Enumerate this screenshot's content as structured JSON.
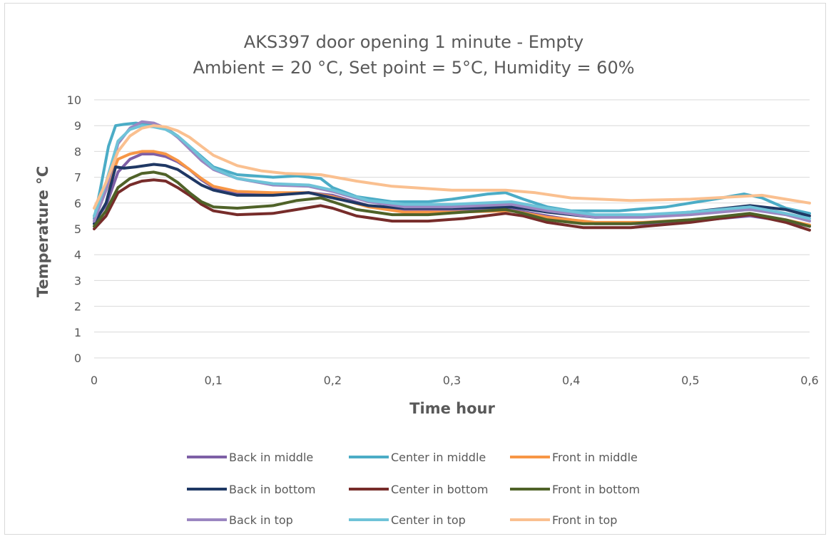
{
  "chart_data": {
    "type": "line",
    "title": "AKS397 door opening 1 minute - Empty",
    "subtitle": "Ambient = 20 °C, Set point = 5°C, Humidity = 60%",
    "xlabel": "Time hour",
    "ylabel": "Temperature °C",
    "xlim": [
      0,
      0.6
    ],
    "ylim": [
      0,
      10
    ],
    "x_ticks": [
      "0",
      "0,1",
      "0,2",
      "0,3",
      "0,4",
      "0,5",
      "0,6"
    ],
    "y_ticks": [
      "0",
      "1",
      "2",
      "3",
      "4",
      "5",
      "6",
      "7",
      "8",
      "9",
      "10"
    ],
    "grid": "horizontal",
    "legend_position": "bottom",
    "series": [
      {
        "name": "Back in middle",
        "color": "#7E5FA6",
        "points": [
          [
            0,
            5.3
          ],
          [
            0.01,
            5.9
          ],
          [
            0.02,
            7.2
          ],
          [
            0.03,
            7.7
          ],
          [
            0.04,
            7.9
          ],
          [
            0.05,
            7.9
          ],
          [
            0.06,
            7.8
          ],
          [
            0.07,
            7.6
          ],
          [
            0.08,
            7.3
          ],
          [
            0.09,
            6.9
          ],
          [
            0.1,
            6.6
          ],
          [
            0.12,
            6.4
          ],
          [
            0.15,
            6.35
          ],
          [
            0.18,
            6.4
          ],
          [
            0.2,
            6.3
          ],
          [
            0.23,
            5.9
          ],
          [
            0.26,
            5.7
          ],
          [
            0.3,
            5.7
          ],
          [
            0.35,
            5.75
          ],
          [
            0.38,
            5.5
          ],
          [
            0.42,
            5.2
          ],
          [
            0.46,
            5.2
          ],
          [
            0.5,
            5.3
          ],
          [
            0.55,
            5.5
          ],
          [
            0.58,
            5.3
          ],
          [
            0.6,
            5.1
          ]
        ]
      },
      {
        "name": "Center in middle",
        "color": "#4BACC6",
        "points": [
          [
            0,
            5.4
          ],
          [
            0.005,
            6.5
          ],
          [
            0.012,
            8.2
          ],
          [
            0.018,
            9.0
          ],
          [
            0.025,
            9.05
          ],
          [
            0.035,
            9.1
          ],
          [
            0.05,
            9.0
          ],
          [
            0.06,
            8.9
          ],
          [
            0.07,
            8.6
          ],
          [
            0.08,
            8.2
          ],
          [
            0.09,
            7.8
          ],
          [
            0.1,
            7.4
          ],
          [
            0.12,
            7.1
          ],
          [
            0.15,
            7.0
          ],
          [
            0.17,
            7.05
          ],
          [
            0.19,
            6.95
          ],
          [
            0.2,
            6.6
          ],
          [
            0.22,
            6.25
          ],
          [
            0.25,
            6.05
          ],
          [
            0.28,
            6.05
          ],
          [
            0.3,
            6.15
          ],
          [
            0.33,
            6.35
          ],
          [
            0.345,
            6.4
          ],
          [
            0.36,
            6.15
          ],
          [
            0.38,
            5.85
          ],
          [
            0.4,
            5.7
          ],
          [
            0.44,
            5.7
          ],
          [
            0.48,
            5.85
          ],
          [
            0.52,
            6.15
          ],
          [
            0.545,
            6.35
          ],
          [
            0.56,
            6.2
          ],
          [
            0.58,
            5.8
          ],
          [
            0.6,
            5.6
          ]
        ]
      },
      {
        "name": "Front in middle",
        "color": "#F79646",
        "points": [
          [
            0,
            5.5
          ],
          [
            0.01,
            6.5
          ],
          [
            0.02,
            7.7
          ],
          [
            0.03,
            7.9
          ],
          [
            0.04,
            8.0
          ],
          [
            0.05,
            8.0
          ],
          [
            0.06,
            7.9
          ],
          [
            0.07,
            7.65
          ],
          [
            0.08,
            7.3
          ],
          [
            0.09,
            6.95
          ],
          [
            0.1,
            6.65
          ],
          [
            0.12,
            6.45
          ],
          [
            0.15,
            6.4
          ],
          [
            0.18,
            6.4
          ],
          [
            0.2,
            6.25
          ],
          [
            0.23,
            5.85
          ],
          [
            0.26,
            5.65
          ],
          [
            0.3,
            5.65
          ],
          [
            0.35,
            5.7
          ],
          [
            0.38,
            5.45
          ],
          [
            0.42,
            5.25
          ],
          [
            0.46,
            5.25
          ],
          [
            0.5,
            5.35
          ],
          [
            0.55,
            5.55
          ],
          [
            0.58,
            5.35
          ],
          [
            0.6,
            5.15
          ]
        ]
      },
      {
        "name": "Back in bottom",
        "color": "#1F3864",
        "points": [
          [
            0,
            5.2
          ],
          [
            0.01,
            6.0
          ],
          [
            0.018,
            7.4
          ],
          [
            0.025,
            7.35
          ],
          [
            0.035,
            7.4
          ],
          [
            0.05,
            7.5
          ],
          [
            0.06,
            7.45
          ],
          [
            0.07,
            7.3
          ],
          [
            0.08,
            7.0
          ],
          [
            0.09,
            6.7
          ],
          [
            0.1,
            6.5
          ],
          [
            0.12,
            6.3
          ],
          [
            0.15,
            6.3
          ],
          [
            0.18,
            6.4
          ],
          [
            0.2,
            6.2
          ],
          [
            0.23,
            5.9
          ],
          [
            0.26,
            5.8
          ],
          [
            0.3,
            5.8
          ],
          [
            0.35,
            5.85
          ],
          [
            0.38,
            5.65
          ],
          [
            0.42,
            5.45
          ],
          [
            0.46,
            5.5
          ],
          [
            0.5,
            5.65
          ],
          [
            0.55,
            5.9
          ],
          [
            0.58,
            5.75
          ],
          [
            0.6,
            5.5
          ]
        ]
      },
      {
        "name": "Center in bottom",
        "color": "#772C2A",
        "points": [
          [
            0,
            5.0
          ],
          [
            0.01,
            5.5
          ],
          [
            0.02,
            6.4
          ],
          [
            0.03,
            6.7
          ],
          [
            0.04,
            6.85
          ],
          [
            0.05,
            6.9
          ],
          [
            0.06,
            6.85
          ],
          [
            0.07,
            6.6
          ],
          [
            0.08,
            6.3
          ],
          [
            0.09,
            5.95
          ],
          [
            0.1,
            5.7
          ],
          [
            0.12,
            5.55
          ],
          [
            0.15,
            5.6
          ],
          [
            0.17,
            5.75
          ],
          [
            0.19,
            5.9
          ],
          [
            0.2,
            5.8
          ],
          [
            0.22,
            5.5
          ],
          [
            0.25,
            5.3
          ],
          [
            0.28,
            5.3
          ],
          [
            0.31,
            5.4
          ],
          [
            0.345,
            5.6
          ],
          [
            0.36,
            5.5
          ],
          [
            0.38,
            5.25
          ],
          [
            0.41,
            5.05
          ],
          [
            0.45,
            5.05
          ],
          [
            0.5,
            5.25
          ],
          [
            0.55,
            5.55
          ],
          [
            0.58,
            5.25
          ],
          [
            0.6,
            4.95
          ]
        ]
      },
      {
        "name": "Front in bottom",
        "color": "#4F6228",
        "points": [
          [
            0,
            5.1
          ],
          [
            0.01,
            5.7
          ],
          [
            0.02,
            6.6
          ],
          [
            0.03,
            6.95
          ],
          [
            0.04,
            7.15
          ],
          [
            0.05,
            7.2
          ],
          [
            0.06,
            7.1
          ],
          [
            0.07,
            6.8
          ],
          [
            0.08,
            6.4
          ],
          [
            0.09,
            6.05
          ],
          [
            0.1,
            5.85
          ],
          [
            0.12,
            5.8
          ],
          [
            0.15,
            5.9
          ],
          [
            0.17,
            6.1
          ],
          [
            0.19,
            6.2
          ],
          [
            0.2,
            6.05
          ],
          [
            0.22,
            5.75
          ],
          [
            0.25,
            5.55
          ],
          [
            0.28,
            5.55
          ],
          [
            0.31,
            5.65
          ],
          [
            0.345,
            5.75
          ],
          [
            0.36,
            5.6
          ],
          [
            0.38,
            5.35
          ],
          [
            0.41,
            5.2
          ],
          [
            0.45,
            5.2
          ],
          [
            0.5,
            5.35
          ],
          [
            0.55,
            5.6
          ],
          [
            0.58,
            5.35
          ],
          [
            0.6,
            5.1
          ]
        ]
      },
      {
        "name": "Back in top",
        "color": "#9B86C1",
        "points": [
          [
            0,
            5.3
          ],
          [
            0.01,
            6.5
          ],
          [
            0.02,
            8.3
          ],
          [
            0.03,
            8.9
          ],
          [
            0.04,
            9.15
          ],
          [
            0.05,
            9.1
          ],
          [
            0.06,
            8.9
          ],
          [
            0.07,
            8.55
          ],
          [
            0.08,
            8.1
          ],
          [
            0.09,
            7.65
          ],
          [
            0.1,
            7.3
          ],
          [
            0.12,
            6.95
          ],
          [
            0.15,
            6.7
          ],
          [
            0.18,
            6.65
          ],
          [
            0.2,
            6.45
          ],
          [
            0.23,
            6.05
          ],
          [
            0.26,
            5.85
          ],
          [
            0.3,
            5.85
          ],
          [
            0.35,
            5.95
          ],
          [
            0.38,
            5.7
          ],
          [
            0.42,
            5.45
          ],
          [
            0.46,
            5.45
          ],
          [
            0.5,
            5.55
          ],
          [
            0.55,
            5.75
          ],
          [
            0.58,
            5.55
          ],
          [
            0.6,
            5.3
          ]
        ]
      },
      {
        "name": "Center in top",
        "color": "#6FC3D8",
        "points": [
          [
            0,
            5.5
          ],
          [
            0.01,
            6.8
          ],
          [
            0.02,
            8.4
          ],
          [
            0.03,
            8.85
          ],
          [
            0.04,
            9.0
          ],
          [
            0.05,
            8.95
          ],
          [
            0.06,
            8.85
          ],
          [
            0.07,
            8.6
          ],
          [
            0.08,
            8.2
          ],
          [
            0.09,
            7.75
          ],
          [
            0.1,
            7.35
          ],
          [
            0.12,
            6.95
          ],
          [
            0.15,
            6.75
          ],
          [
            0.18,
            6.7
          ],
          [
            0.2,
            6.5
          ],
          [
            0.23,
            6.1
          ],
          [
            0.26,
            5.95
          ],
          [
            0.3,
            5.95
          ],
          [
            0.35,
            6.05
          ],
          [
            0.38,
            5.8
          ],
          [
            0.42,
            5.55
          ],
          [
            0.46,
            5.55
          ],
          [
            0.5,
            5.65
          ],
          [
            0.55,
            5.85
          ],
          [
            0.58,
            5.6
          ],
          [
            0.6,
            5.4
          ]
        ]
      },
      {
        "name": "Front in top",
        "color": "#FAC090",
        "points": [
          [
            0,
            5.8
          ],
          [
            0.01,
            6.8
          ],
          [
            0.02,
            8.0
          ],
          [
            0.03,
            8.6
          ],
          [
            0.04,
            8.9
          ],
          [
            0.05,
            9.0
          ],
          [
            0.06,
            8.95
          ],
          [
            0.07,
            8.8
          ],
          [
            0.08,
            8.55
          ],
          [
            0.09,
            8.2
          ],
          [
            0.1,
            7.85
          ],
          [
            0.12,
            7.45
          ],
          [
            0.14,
            7.25
          ],
          [
            0.16,
            7.15
          ],
          [
            0.19,
            7.1
          ],
          [
            0.22,
            6.85
          ],
          [
            0.25,
            6.65
          ],
          [
            0.3,
            6.5
          ],
          [
            0.345,
            6.5
          ],
          [
            0.37,
            6.4
          ],
          [
            0.4,
            6.2
          ],
          [
            0.45,
            6.1
          ],
          [
            0.5,
            6.15
          ],
          [
            0.54,
            6.25
          ],
          [
            0.56,
            6.3
          ],
          [
            0.58,
            6.15
          ],
          [
            0.6,
            6.0
          ]
        ]
      }
    ]
  }
}
